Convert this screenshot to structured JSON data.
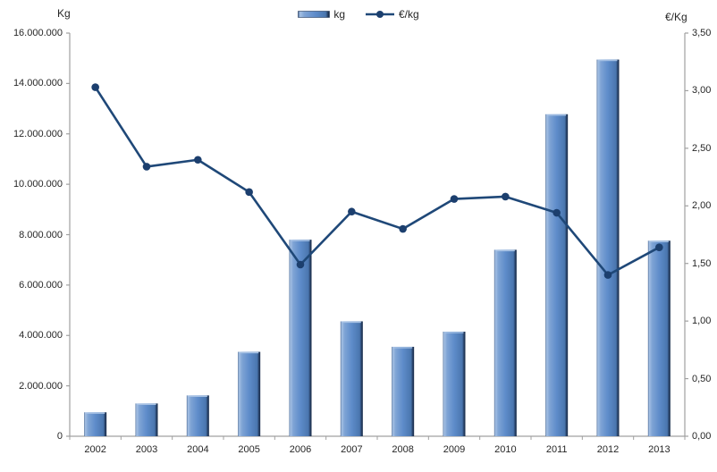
{
  "chart_data": {
    "type": "combo",
    "categories": [
      "2002",
      "2003",
      "2004",
      "2005",
      "2006",
      "2007",
      "2008",
      "2009",
      "2010",
      "2011",
      "2012",
      "2013"
    ],
    "series": [
      {
        "name": "kg",
        "type": "bar",
        "axis": "left",
        "values": [
          950000,
          1300000,
          1620000,
          3350000,
          7800000,
          4560000,
          3550000,
          4150000,
          7400000,
          12780000,
          14950000,
          7760000
        ]
      },
      {
        "name": "€/kg",
        "type": "line",
        "axis": "right",
        "values": [
          3.03,
          2.34,
          2.4,
          2.12,
          1.49,
          1.95,
          1.8,
          2.06,
          2.08,
          1.94,
          1.4,
          1.64
        ]
      }
    ],
    "title": "",
    "xlabel": "",
    "left_axis": {
      "title": "Kg",
      "min": 0,
      "max": 16000000,
      "step": 2000000,
      "tick_labels": [
        "0",
        "2.000.000",
        "4.000.000",
        "6.000.000",
        "8.000.000",
        "10.000.000",
        "12.000.000",
        "14.000.000",
        "16.000.000"
      ]
    },
    "right_axis": {
      "title": "€/Kg",
      "min": 0,
      "max": 3.5,
      "step": 0.5,
      "tick_labels": [
        "0,00",
        "0,50",
        "1,00",
        "1,50",
        "2,00",
        "2,50",
        "3,00",
        "3,50"
      ]
    },
    "legend": {
      "position": "top-center",
      "items": [
        {
          "label": "kg",
          "swatch": "bar"
        },
        {
          "label": "€/kg",
          "swatch": "line-marker"
        }
      ]
    },
    "grid": false,
    "colors": {
      "bar_highlight": "#A6C1E4",
      "bar_light": "#7FA4D5",
      "bar_fill": "#5E8CCA",
      "bar_shade": "#4A76AE",
      "bar_edge": "#1B2F4C",
      "line": "#1F4878",
      "marker": "#1C3F6E",
      "axis_line": "#A0A0A0",
      "text": "#262626"
    }
  }
}
